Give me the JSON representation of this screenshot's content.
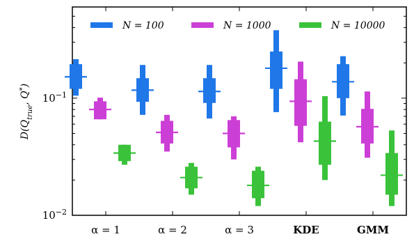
{
  "chart_data": {
    "type": "box",
    "ylabel": "D(Q_true, Q*)",
    "yscale": "log",
    "ylim": [
      0.01,
      0.6
    ],
    "yticks": [
      {
        "value": 0.1,
        "base": "10",
        "exp": "−1"
      },
      {
        "value": 0.01,
        "base": "10",
        "exp": "−2"
      }
    ],
    "categories": [
      {
        "label": "α = 1",
        "bold": false
      },
      {
        "label": "α = 2",
        "bold": false
      },
      {
        "label": "α = 3",
        "bold": false
      },
      {
        "label": "KDE",
        "bold": true
      },
      {
        "label": "GMM",
        "bold": true
      }
    ],
    "legend": {
      "placement": "top"
    },
    "series": [
      {
        "name": "N = 100",
        "color": "#1f77e8",
        "stats": [
          {
            "min": 0.105,
            "q1": 0.12,
            "median": 0.152,
            "q3": 0.195,
            "max": 0.215
          },
          {
            "min": 0.072,
            "q1": 0.093,
            "median": 0.117,
            "q3": 0.148,
            "max": 0.192
          },
          {
            "min": 0.067,
            "q1": 0.091,
            "median": 0.114,
            "q3": 0.148,
            "max": 0.192
          },
          {
            "min": 0.076,
            "q1": 0.12,
            "median": 0.18,
            "q3": 0.25,
            "max": 0.38
          },
          {
            "min": 0.071,
            "q1": 0.1,
            "median": 0.138,
            "q3": 0.195,
            "max": 0.228
          }
        ]
      },
      {
        "name": "N = 1000",
        "color": "#cc3fd6",
        "stats": [
          {
            "min": 0.066,
            "q1": 0.066,
            "median": 0.08,
            "q3": 0.094,
            "max": 0.101
          },
          {
            "min": 0.035,
            "q1": 0.041,
            "median": 0.051,
            "q3": 0.064,
            "max": 0.072
          },
          {
            "min": 0.03,
            "q1": 0.038,
            "median": 0.05,
            "q3": 0.065,
            "max": 0.07
          },
          {
            "min": 0.042,
            "q1": 0.058,
            "median": 0.094,
            "q3": 0.145,
            "max": 0.205
          },
          {
            "min": 0.031,
            "q1": 0.041,
            "median": 0.057,
            "q3": 0.081,
            "max": 0.114
          }
        ]
      },
      {
        "name": "N = 10000",
        "color": "#3ac23a",
        "stats": [
          {
            "min": 0.027,
            "q1": 0.029,
            "median": 0.034,
            "q3": 0.04,
            "max": 0.04
          },
          {
            "min": 0.015,
            "q1": 0.017,
            "median": 0.021,
            "q3": 0.026,
            "max": 0.028
          },
          {
            "min": 0.012,
            "q1": 0.014,
            "median": 0.018,
            "q3": 0.024,
            "max": 0.026
          },
          {
            "min": 0.02,
            "q1": 0.027,
            "median": 0.043,
            "q3": 0.063,
            "max": 0.104
          },
          {
            "min": 0.012,
            "q1": 0.015,
            "median": 0.022,
            "q3": 0.034,
            "max": 0.053
          }
        ]
      }
    ]
  }
}
